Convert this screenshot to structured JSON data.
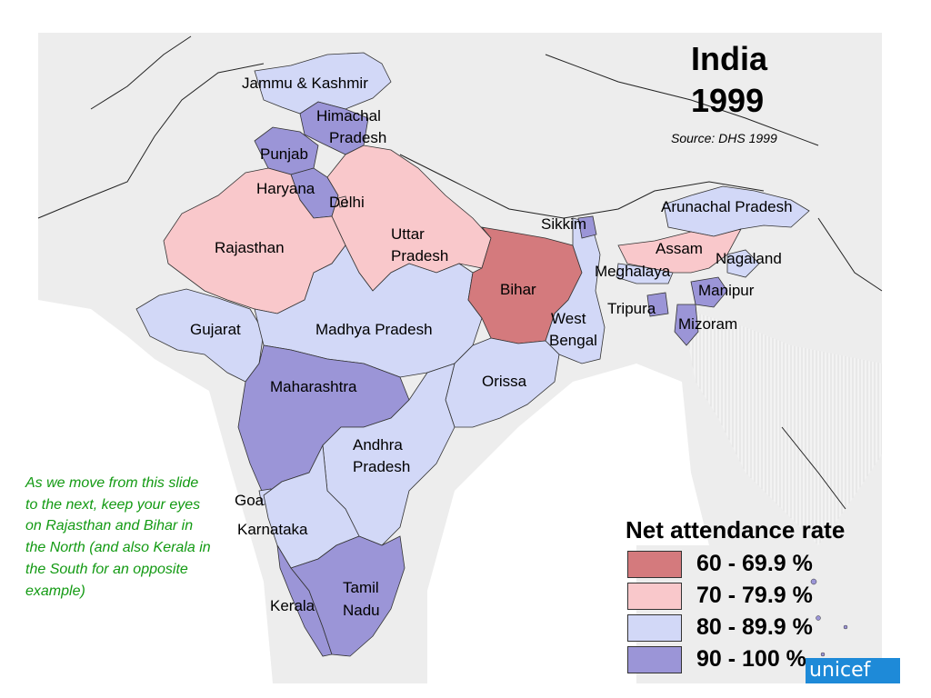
{
  "title_line1": "India",
  "title_line2": "1999",
  "source": "Source: DHS 1999",
  "note": "As we move from this slide to the next, keep your eyes on Rajasthan and Bihar in the North (and also Kerala in the South for an opposite example)",
  "legend": {
    "title": "Net attendance rate",
    "items": [
      {
        "label": "60 - 69.9 %",
        "color": "#d47a7d"
      },
      {
        "label": "70 - 79.9 %",
        "color": "#f9c8cb"
      },
      {
        "label": "80 - 89.9 %",
        "color": "#d2d8f7"
      },
      {
        "label": "90 - 100 %",
        "color": "#9b95d7"
      }
    ]
  },
  "states": {
    "jammu_kashmir": "Jammu & Kashmir",
    "himachal_1": "Himachal",
    "himachal_2": "Pradesh",
    "punjab": "Punjab",
    "haryana": "Haryana",
    "delhi": "Delhi",
    "rajasthan": "Rajasthan",
    "uttar_1": "Uttar",
    "uttar_2": "Pradesh",
    "bihar": "Bihar",
    "sikkim": "Sikkim",
    "arunachal": "Arunachal Pradesh",
    "assam": "Assam",
    "nagaland": "Nagaland",
    "meghalaya": "Meghalaya",
    "manipur": "Manipur",
    "tripura": "Tripura",
    "mizoram": "Mizoram",
    "west_1": "West",
    "west_2": "Bengal",
    "gujarat": "Gujarat",
    "madhya": "Madhya Pradesh",
    "maharashtra": "Maharashtra",
    "orissa": "Orissa",
    "andhra_1": "Andhra",
    "andhra_2": "Pradesh",
    "goa": "Goa",
    "karnataka": "Karnataka",
    "tamil_1": "Tamil",
    "tamil_2": "Nadu",
    "kerala": "Kerala"
  },
  "logo_text": "unicef"
}
